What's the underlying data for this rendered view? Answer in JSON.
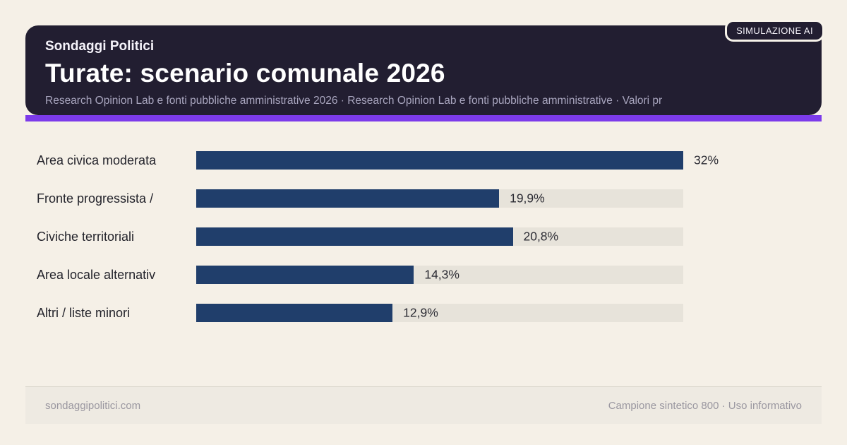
{
  "badge": "SIMULAZIONE AI",
  "header": {
    "kicker": "Sondaggi Politici",
    "title": "Turate: scenario comunale 2026",
    "subtitle": "Research Opinion Lab e fonti pubbliche amministrative 2026 · Research Opinion Lab e fonti pubbliche amministrative · Valori pr"
  },
  "chart_data": {
    "type": "bar",
    "orientation": "horizontal",
    "title": "Turate: scenario comunale 2026",
    "categories": [
      "Area civica moderata",
      "Fronte progressista /",
      "Civiche territoriali",
      "Area locale alternativ",
      "Altri / liste minori"
    ],
    "values": [
      32,
      19.9,
      20.8,
      14.3,
      12.9
    ],
    "value_labels": [
      "32%",
      "19,9%",
      "20,8%",
      "14,3%",
      "12,9%"
    ],
    "xlim": [
      0,
      32
    ],
    "grid": false,
    "legend": false,
    "bar_color": "#203e6b",
    "track_color": "#e7e3da"
  },
  "footer": {
    "left": "sondaggipolitici.com",
    "right": "Campione sintetico 800 · Uso informativo"
  },
  "colors": {
    "page_bg": "#f5f0e7",
    "header_bg": "#221e31",
    "accent": "#7c3bea"
  }
}
